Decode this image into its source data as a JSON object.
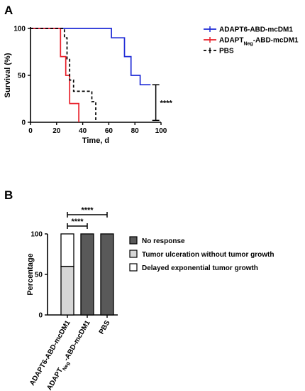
{
  "chart_data": [
    {
      "panel": "A",
      "type": "line",
      "xlabel": "Time, d",
      "ylabel": "Survival (%)",
      "xlim": [
        0,
        100
      ],
      "ylim": [
        0,
        100
      ],
      "xticks": [
        0,
        20,
        40,
        60,
        80,
        100
      ],
      "yticks": [
        0,
        50,
        100
      ],
      "legend_position": "top-right",
      "grid": false,
      "series": [
        {
          "name": "ADAPT6-ABD-mcDM1",
          "sub": "",
          "name_after": "",
          "color": "#1f2bd6",
          "style": "solid",
          "points": [
            [
              0,
              100
            ],
            [
              62,
              100
            ],
            [
              62,
              90
            ],
            [
              72,
              90
            ],
            [
              72,
              70
            ],
            [
              77,
              70
            ],
            [
              77,
              50
            ],
            [
              84,
              50
            ],
            [
              84,
              40
            ],
            [
              92,
              40
            ]
          ]
        },
        {
          "name": "ADAPT",
          "sub": "Neg",
          "name_after": "-ABD-mcDM1",
          "color": "#e8202a",
          "style": "solid",
          "points": [
            [
              0,
              100
            ],
            [
              23,
              100
            ],
            [
              23,
              70
            ],
            [
              27,
              70
            ],
            [
              27,
              50
            ],
            [
              30,
              50
            ],
            [
              30,
              20
            ],
            [
              37,
              20
            ],
            [
              37,
              0
            ]
          ]
        },
        {
          "name": "PBS",
          "sub": "",
          "name_after": "",
          "color": "#000000",
          "style": "dashed",
          "points": [
            [
              0,
              100
            ],
            [
              26,
              100
            ],
            [
              26,
              90
            ],
            [
              28,
              90
            ],
            [
              28,
              67
            ],
            [
              30,
              67
            ],
            [
              30,
              45
            ],
            [
              33,
              45
            ],
            [
              33,
              33
            ],
            [
              47,
              33
            ],
            [
              47,
              22
            ],
            [
              50,
              22
            ],
            [
              50,
              0
            ]
          ]
        }
      ],
      "annotations": [
        {
          "text": "****",
          "from_y": 40,
          "to_y": 2,
          "at_x": 96
        }
      ]
    },
    {
      "panel": "B",
      "type": "bar",
      "stacked": true,
      "ylabel": "Percentage",
      "ylim": [
        0,
        100
      ],
      "yticks": [
        0,
        50,
        100
      ],
      "legend_position": "right",
      "categories": [
        {
          "name": "ADAPT6-ABD-mcDM1",
          "sub": "",
          "name_after": ""
        },
        {
          "name": "ADAPT",
          "sub": "Neg",
          "name_after": "-ABD-mcDM1"
        },
        {
          "name": "PBS",
          "sub": "",
          "name_after": ""
        }
      ],
      "series": [
        {
          "name": "No response",
          "color": "#595959",
          "values": [
            0,
            100,
            100
          ]
        },
        {
          "name": "Tumor ulceration without tumor growth",
          "color": "#d6d6d6",
          "values": [
            60,
            0,
            0
          ]
        },
        {
          "name": "Delayed exponential tumor growth",
          "color": "#ffffff",
          "values": [
            40,
            0,
            0
          ]
        }
      ],
      "annotations": [
        {
          "text": "****",
          "from": 0,
          "to": 2
        },
        {
          "text": "****",
          "from": 0,
          "to": 1
        }
      ]
    }
  ]
}
